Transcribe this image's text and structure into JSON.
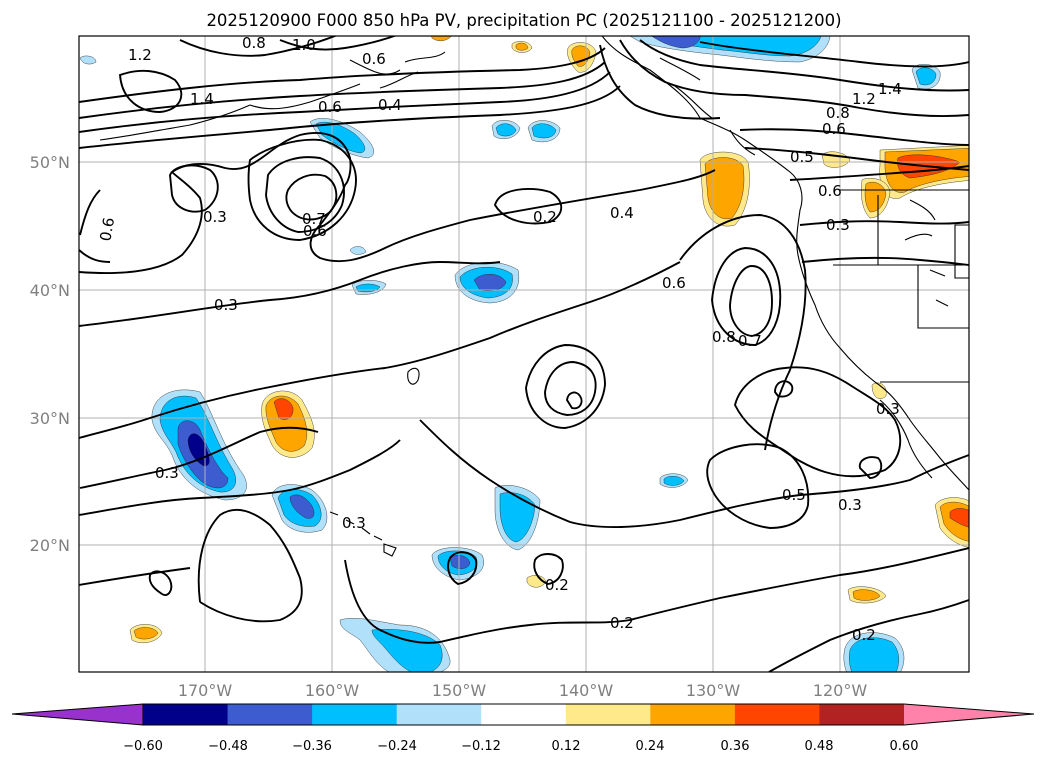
{
  "title": "2025120900 F000 850 hPa PV, precipitation PC (2025121100 - 2025121200)",
  "lat_labels": [
    "50°N",
    "40°N",
    "30°N",
    "20°N"
  ],
  "lon_labels": [
    "170°W",
    "160°W",
    "150°W",
    "140°W",
    "130°W",
    "120°W"
  ],
  "contour_labels": [
    "1.2",
    "0.8",
    "1.0",
    "0.6",
    "1.4",
    "0.6",
    "0.4",
    "0.6",
    "0.3",
    "0.7",
    "0.6",
    "0.2",
    "0.4",
    "0.5",
    "0.6",
    "0.3",
    "0.8",
    "0.6",
    "0.7",
    "0.8",
    "1.2",
    "1.4",
    "0.3",
    "0.6",
    "0.3",
    "0.3",
    "0.3",
    "0.5",
    "0.3",
    "0.2",
    "0.2",
    "0.2"
  ],
  "colorbar": {
    "ticks": [
      "−0.60",
      "−0.48",
      "−0.36",
      "−0.24",
      "−0.12",
      "0.12",
      "0.24",
      "0.36",
      "0.48",
      "0.60"
    ],
    "colors": [
      "#9932cc",
      "#00008b",
      "#3c5cd0",
      "#00bfff",
      "#b0e0fa",
      "#ffffff",
      "#ffe98a",
      "#ffa500",
      "#ff4500",
      "#b22222",
      "#ff82ab"
    ]
  },
  "precip_colors": {
    "neg1": "#b0e0fa",
    "neg2": "#00bfff",
    "neg3": "#3c5cd0",
    "neg4": "#00008b",
    "pos1": "#ffe98a",
    "pos2": "#ffa500",
    "pos3": "#ff4500"
  }
}
